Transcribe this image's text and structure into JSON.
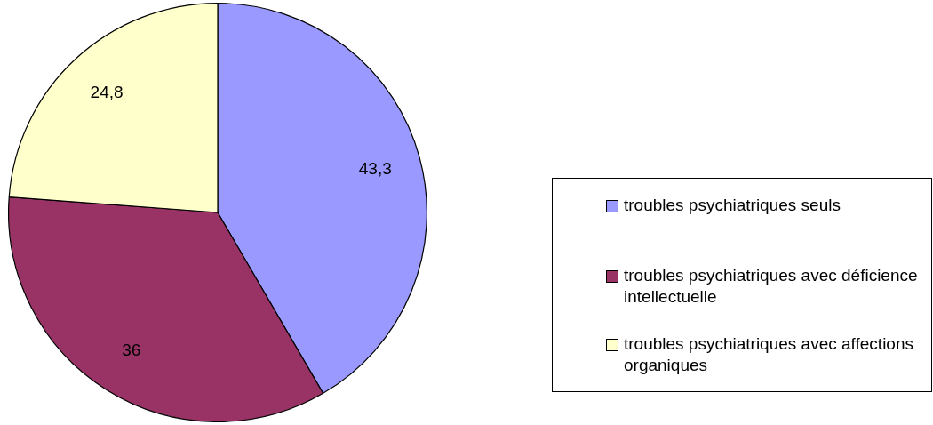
{
  "chart_data": {
    "type": "pie",
    "categories": [
      "troubles psychiatriques seuls",
      "troubles psychiatriques avec déficience intellectuelle",
      "troubles psychiatriques avec affections organiques"
    ],
    "values": [
      43.3,
      36,
      24.8
    ],
    "value_labels": [
      "43,3",
      "36",
      "24,8"
    ],
    "colors": [
      "#9999ff",
      "#993366",
      "#ffffcc"
    ],
    "legend": "right"
  }
}
